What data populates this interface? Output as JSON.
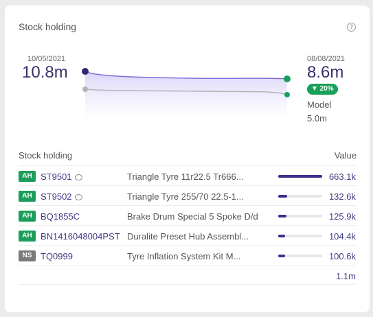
{
  "card": {
    "title": "Stock holding"
  },
  "trend": {
    "start_date": "10/05/2021",
    "start_value": "10.8m",
    "end_date": "08/08/2021",
    "end_value": "8.6m",
    "change_label": "▼ 20%",
    "model_label": "Model",
    "model_value": "5.0m"
  },
  "table": {
    "header_left": "Stock holding",
    "header_right": "Value",
    "rows": [
      {
        "status": "AH",
        "code": "ST9501",
        "has_comment": true,
        "description": "Triangle Tyre 11r22.5 Tr666...",
        "share": 1.0,
        "value": "663.1k"
      },
      {
        "status": "AH",
        "code": "ST9502",
        "has_comment": true,
        "description": "Triangle Tyre 255/70 22.5-1...",
        "share": 0.2,
        "value": "132.6k"
      },
      {
        "status": "AH",
        "code": "BQ1855C",
        "has_comment": false,
        "description": "Brake Drum Special 5 Spoke D/d",
        "share": 0.19,
        "value": "125.9k"
      },
      {
        "status": "AH",
        "code": "BN1416048004PST",
        "has_comment": false,
        "description": "Duralite Preset Hub Assembl...",
        "share": 0.157,
        "value": "104.4k"
      },
      {
        "status": "NS",
        "code": "TQ0999",
        "has_comment": false,
        "description": "Tyre Inflation System Kit M...",
        "share": 0.152,
        "value": "100.6k"
      }
    ],
    "total": "1.1m"
  },
  "colors": {
    "accent": "#3f3a84",
    "badge_ah": "#1a9e59",
    "badge_ns": "#7a7a7a",
    "trend_line": "#7b6fd8",
    "model_line": "#b3b3b3"
  }
}
